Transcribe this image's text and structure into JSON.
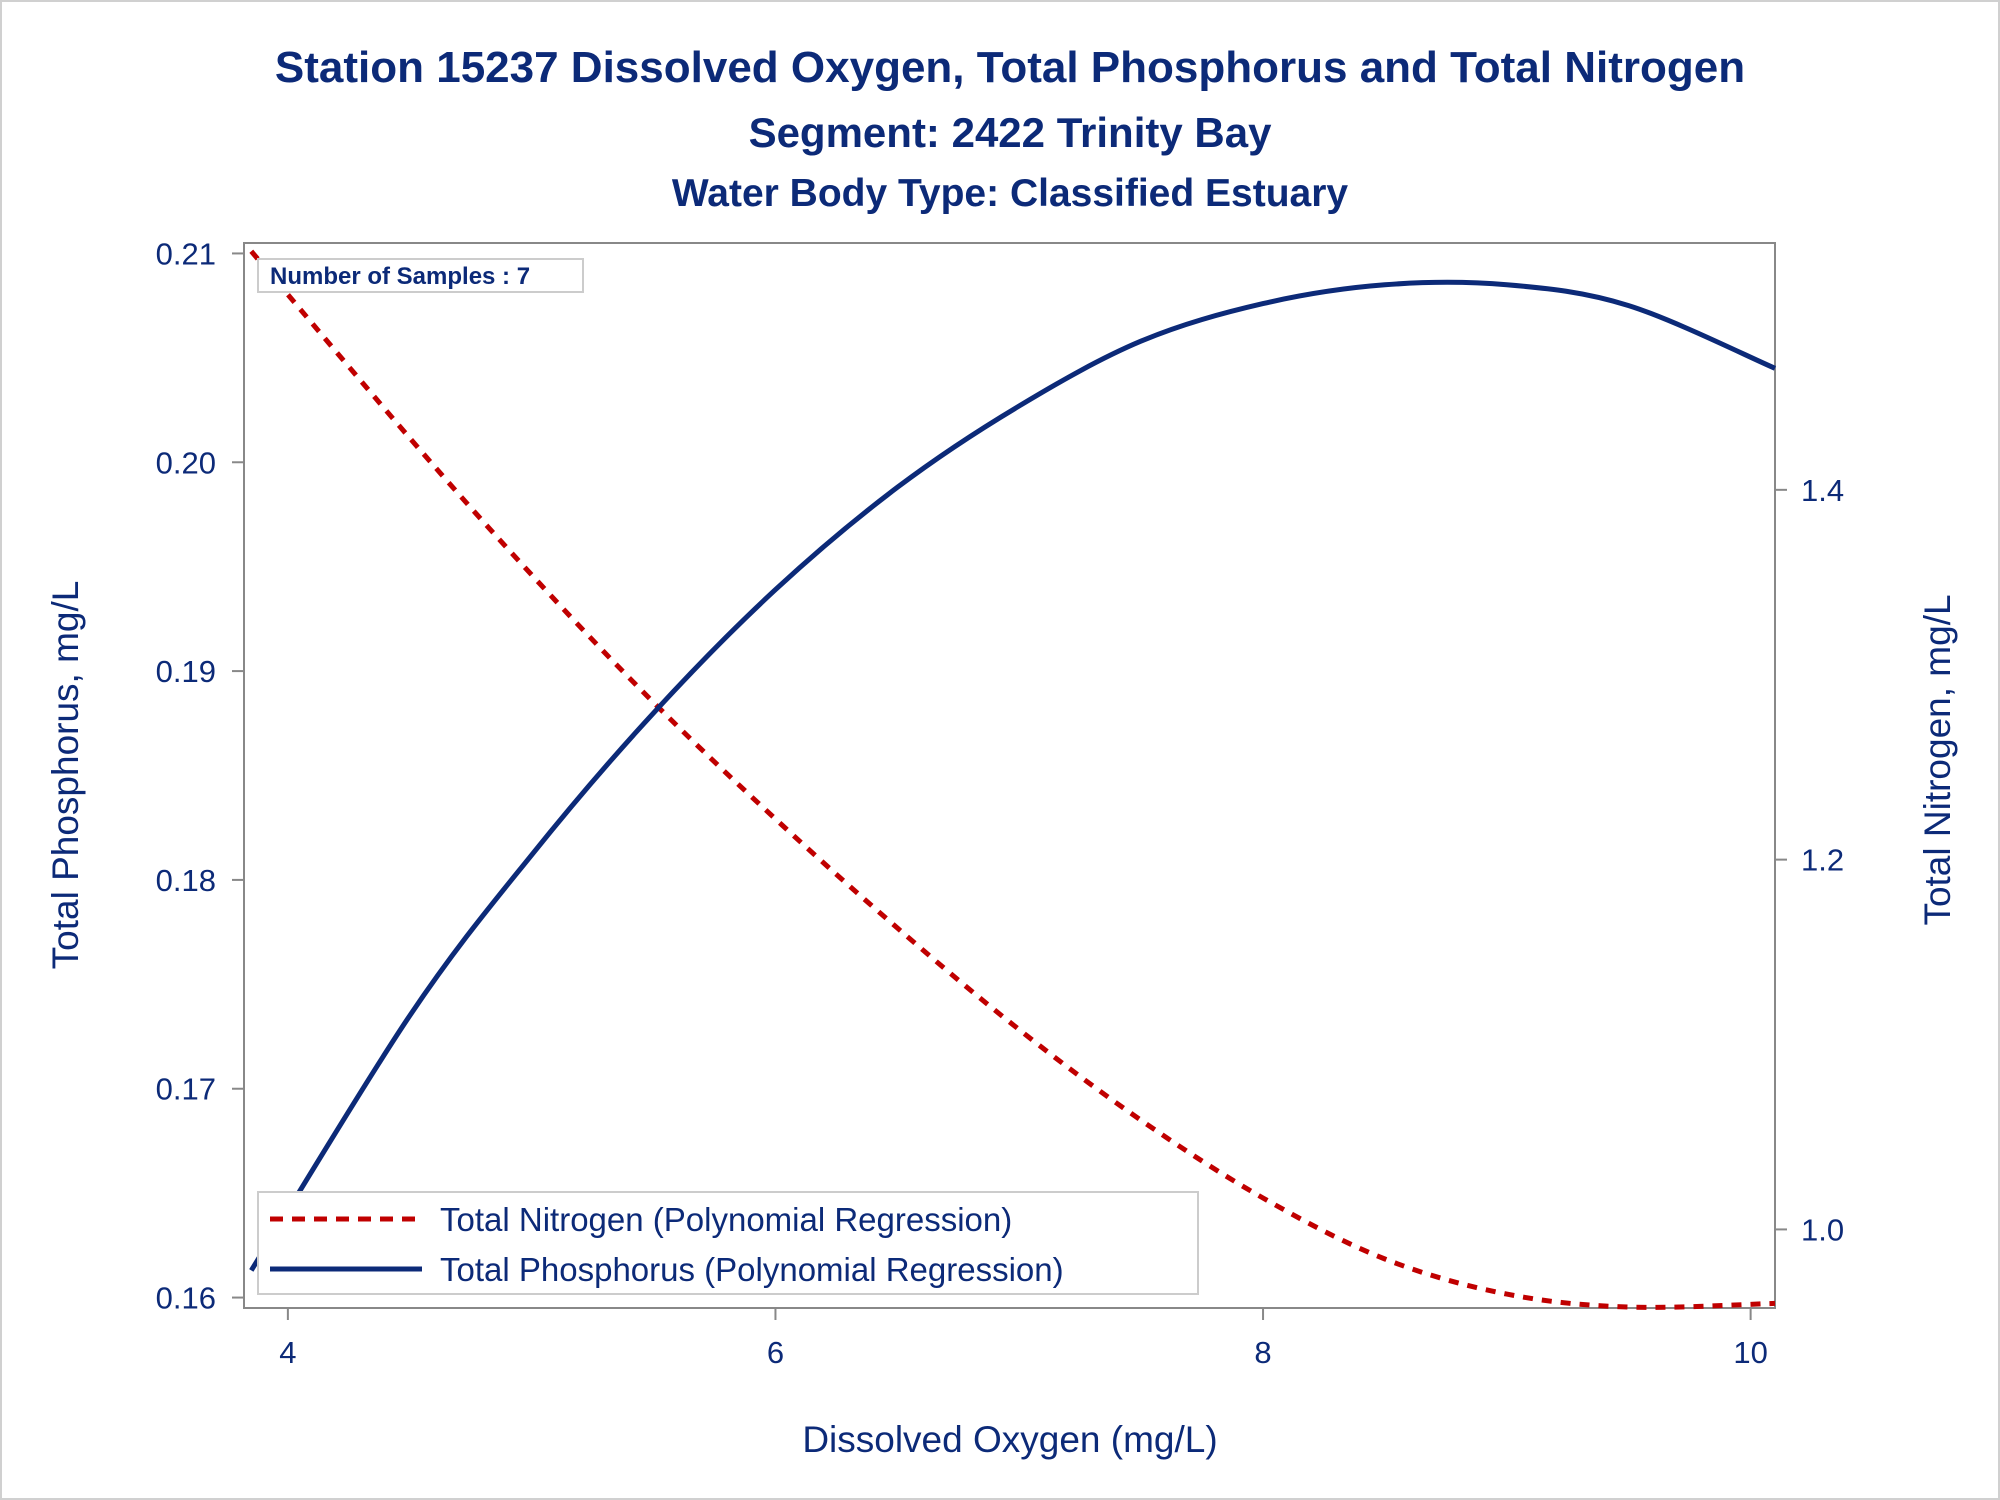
{
  "chart_data": {
    "type": "line",
    "title": "Station 15237  Dissolved Oxygen, Total Phosphorus and Total Nitrogen",
    "subtitle": "Segment: 2422  Trinity Bay",
    "subtitle2": "Water Body Type: Classified Estuary",
    "xlabel": "Dissolved Oxygen (mg/L)",
    "ylabel_left": "Total Phosphorus, mg/L",
    "ylabel_right": "Total Nitrogen, mg/L",
    "annotation": "Number of Samples : 7",
    "xlim": [
      3.82,
      10.1
    ],
    "ylim_left": [
      0.1595,
      0.2105
    ],
    "ylim_right": [
      0.9575,
      1.5335
    ],
    "x_ticks": [
      "4",
      "6",
      "8",
      "10"
    ],
    "y_left_ticks": [
      "0.16",
      "0.17",
      "0.18",
      "0.19",
      "0.20",
      "0.21"
    ],
    "y_right_ticks": [
      "1.0",
      "1.2",
      "1.4"
    ],
    "grid": false,
    "legend_position": "bottom-left",
    "colors": {
      "nitrogen": "#c00000",
      "phosphorus": "#0c2a78",
      "text": "#0c2a78",
      "axis": "#888888"
    },
    "series": [
      {
        "name": "Total Nitrogen (Polynomial Regression)",
        "axis": "right",
        "style": "dashed",
        "x": [
          3.85,
          4.5,
          5.0,
          5.5,
          6.0,
          6.5,
          7.0,
          7.5,
          8.0,
          8.5,
          9.0,
          9.5,
          10.1
        ],
        "y": [
          1.529,
          1.428,
          1.354,
          1.285,
          1.222,
          1.163,
          1.108,
          1.059,
          1.017,
          0.984,
          0.965,
          0.958,
          0.96
        ]
      },
      {
        "name": "Total Phosphorus (Polynomial Regression)",
        "axis": "left",
        "style": "solid",
        "x": [
          3.85,
          4.5,
          5.0,
          5.5,
          6.0,
          6.5,
          7.0,
          7.5,
          8.0,
          8.5,
          9.0,
          9.5,
          10.1
        ],
        "y": [
          0.1613,
          0.1735,
          0.1812,
          0.188,
          0.1939,
          0.1988,
          0.2027,
          0.2058,
          0.2076,
          0.2085,
          0.2085,
          0.2075,
          0.2045
        ]
      }
    ]
  }
}
